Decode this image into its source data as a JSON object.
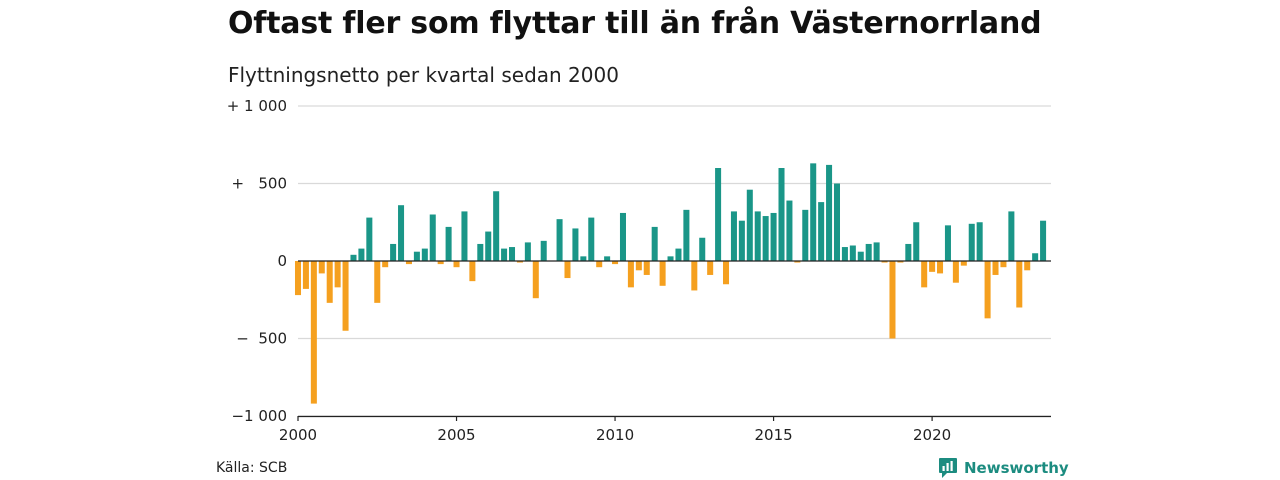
{
  "title": "Oftast fler som flyttar till än från Västernorrland",
  "subtitle": "Flyttningsnetto per kvartal sedan 2000",
  "source": "Källa: SCB",
  "brand": {
    "name": "Newsworthy",
    "icon": "newsworthy-logo-icon"
  },
  "colors": {
    "positive": "#1a9688",
    "negative": "#f5a01f",
    "grid": "#d9d9d9",
    "axis": "#222222"
  },
  "chart_data": {
    "type": "bar",
    "title": "Oftast fler som flyttar till än från Västernorrland",
    "subtitle": "Flyttningsnetto per kvartal sedan 2000",
    "xlabel": "",
    "ylabel": "",
    "x_start": 2000.0,
    "x_step": 0.25,
    "xlim": [
      2000,
      2023.75
    ],
    "ylim": [
      -1000,
      1000
    ],
    "grid": true,
    "x_ticks": [
      {
        "value": 2000,
        "label": "2000"
      },
      {
        "value": 2005,
        "label": "2005"
      },
      {
        "value": 2010,
        "label": "2010"
      },
      {
        "value": 2015,
        "label": "2015"
      },
      {
        "value": 2020,
        "label": "2020"
      }
    ],
    "y_ticks": [
      {
        "value": 1000,
        "label": "+ 1 000"
      },
      {
        "value": 500,
        "label": "+   500"
      },
      {
        "value": 0,
        "label": "0"
      },
      {
        "value": -500,
        "label": "−  500"
      },
      {
        "value": -1000,
        "label": "−1 000"
      }
    ],
    "values": [
      -220,
      -180,
      -920,
      -80,
      -270,
      -170,
      -450,
      40,
      80,
      280,
      -270,
      -40,
      110,
      360,
      -20,
      60,
      80,
      300,
      -20,
      220,
      -40,
      320,
      -130,
      110,
      190,
      450,
      80,
      90,
      -10,
      120,
      -240,
      130,
      0,
      270,
      -110,
      210,
      30,
      280,
      -40,
      30,
      -20,
      310,
      -170,
      -60,
      -90,
      220,
      -160,
      30,
      80,
      330,
      -190,
      150,
      -90,
      600,
      -150,
      320,
      260,
      460,
      320,
      290,
      310,
      600,
      390,
      -10,
      330,
      630,
      380,
      620,
      500,
      90,
      100,
      60,
      110,
      120,
      -10,
      -500,
      -10,
      110,
      250,
      -170,
      -70,
      -80,
      230,
      -140,
      -30,
      240,
      250,
      -370,
      -90,
      -40,
      320,
      -300,
      -60,
      50,
      260
    ]
  }
}
